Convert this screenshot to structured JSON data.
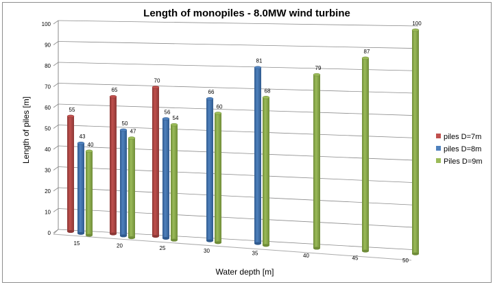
{
  "chart_data": {
    "type": "bar",
    "title": "Length of monopiles  - 8.0MW wind turbine",
    "xlabel": "Water depth [m]",
    "ylabel": "Length of piles [m]",
    "ylim": [
      0,
      100
    ],
    "yticks": [
      "0",
      "10",
      "20",
      "30",
      "40",
      "50",
      "60",
      "70",
      "80",
      "90",
      "100"
    ],
    "categories": [
      "15",
      "20",
      "25",
      "30",
      "35",
      "40",
      "45",
      "50"
    ],
    "grid": true,
    "legend_position": "right",
    "series": [
      {
        "name": "piles D=7m",
        "color": "#c0504d",
        "values": [
          55,
          65,
          70,
          null,
          null,
          null,
          null,
          null
        ]
      },
      {
        "name": "piles D=8m",
        "color": "#4f81bd",
        "values": [
          43,
          50,
          56,
          66,
          81,
          null,
          null,
          null
        ]
      },
      {
        "name": "Piles D=9m",
        "color": "#9bbb59",
        "values": [
          40,
          47,
          54,
          60,
          68,
          79,
          87,
          100
        ]
      }
    ]
  }
}
